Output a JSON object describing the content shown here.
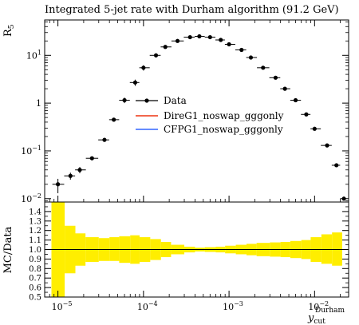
{
  "chart_data": [
    {
      "type": "scatter",
      "title": "Integrated 5-jet rate with Durham algorithm (91.2 GeV)",
      "ylabel": "R5",
      "ylabel_main": "R",
      "ylabel_sub": "5",
      "xlabel_main": "y",
      "xlabel_sub": "cut",
      "xlabel_sup": "Durham",
      "xscale": "log",
      "yscale": "log",
      "xlim": [
        7e-06,
        0.025
      ],
      "ylim": [
        0.0085,
        55
      ],
      "grid": false,
      "legend_position": "center",
      "x_ticks": [
        {
          "value": 1e-05,
          "base": "10",
          "exp": "−5"
        },
        {
          "value": 0.0001,
          "base": "10",
          "exp": "−4"
        },
        {
          "value": 0.001,
          "base": "10",
          "exp": "−3"
        },
        {
          "value": 0.01,
          "base": "10",
          "exp": "−2"
        }
      ],
      "y_ticks": [
        {
          "value": 0.01,
          "base": "10",
          "exp": "−2",
          "plain": ""
        },
        {
          "value": 0.1,
          "base": "10",
          "exp": "−1",
          "plain": ""
        },
        {
          "value": 1,
          "base": "",
          "exp": "",
          "plain": "1"
        },
        {
          "value": 10,
          "base": "10",
          "exp": "1",
          "plain": ""
        }
      ],
      "series": [
        {
          "name": "Data",
          "color": "#000000",
          "points": [
            {
              "x": 1e-05,
              "y": 0.02,
              "lo": 0.013,
              "hi": 0.026
            },
            {
              "x": 1.4e-05,
              "y": 0.03,
              "lo": 0.025,
              "hi": 0.035
            },
            {
              "x": 1.8e-05,
              "y": 0.04,
              "lo": 0.034,
              "hi": 0.046
            },
            {
              "x": 2.5e-05,
              "y": 0.07,
              "lo": 0.065,
              "hi": 0.075
            },
            {
              "x": 3.5e-05,
              "y": 0.17,
              "lo": 0.16,
              "hi": 0.18
            },
            {
              "x": 4.5e-05,
              "y": 0.45,
              "lo": 0.42,
              "hi": 0.48
            },
            {
              "x": 6e-05,
              "y": 1.15,
              "lo": 1.0,
              "hi": 1.3
            },
            {
              "x": 8e-05,
              "y": 2.7,
              "lo": 2.3,
              "hi": 3.1
            },
            {
              "x": 0.0001,
              "y": 5.5,
              "lo": 4.8,
              "hi": 6.2
            },
            {
              "x": 0.00014,
              "y": 10.0,
              "lo": 9.0,
              "hi": 11.0
            },
            {
              "x": 0.00018,
              "y": 15.0,
              "lo": 14.0,
              "hi": 16.0
            },
            {
              "x": 0.00025,
              "y": 20.0,
              "lo": 19.0,
              "hi": 21.0
            },
            {
              "x": 0.00035,
              "y": 24.0,
              "lo": 23.0,
              "hi": 25.0
            },
            {
              "x": 0.00045,
              "y": 25.0,
              "lo": 24.2,
              "hi": 25.8
            },
            {
              "x": 0.0006,
              "y": 24.0,
              "lo": 23.2,
              "hi": 24.8
            },
            {
              "x": 0.0008,
              "y": 21.0,
              "lo": 20.2,
              "hi": 21.8
            },
            {
              "x": 0.001,
              "y": 17.0,
              "lo": 16.3,
              "hi": 17.7
            },
            {
              "x": 0.0014,
              "y": 13.0,
              "lo": 12.4,
              "hi": 13.6
            },
            {
              "x": 0.0018,
              "y": 9.0,
              "lo": 8.6,
              "hi": 9.4
            },
            {
              "x": 0.0025,
              "y": 5.5,
              "lo": 5.2,
              "hi": 5.8
            },
            {
              "x": 0.0035,
              "y": 3.4,
              "lo": 3.2,
              "hi": 3.6
            },
            {
              "x": 0.0045,
              "y": 2.0,
              "lo": 1.9,
              "hi": 2.1
            },
            {
              "x": 0.006,
              "y": 1.15,
              "lo": 1.08,
              "hi": 1.22
            },
            {
              "x": 0.008,
              "y": 0.58,
              "lo": 0.54,
              "hi": 0.62
            },
            {
              "x": 0.01,
              "y": 0.29,
              "lo": 0.27,
              "hi": 0.31
            },
            {
              "x": 0.014,
              "y": 0.13,
              "lo": 0.12,
              "hi": 0.14
            },
            {
              "x": 0.018,
              "y": 0.05,
              "lo": 0.046,
              "hi": 0.054
            },
            {
              "x": 0.022,
              "y": 0.01,
              "lo": 0.0095,
              "hi": 0.0105
            }
          ]
        },
        {
          "name": "DireG1_noswap_gggonly",
          "color": "#ee3311",
          "points": []
        },
        {
          "name": "CFPG1_noswap_gggonly",
          "color": "#3366ff",
          "points": []
        }
      ]
    },
    {
      "type": "area",
      "ylabel": "MC/Data",
      "xscale": "log",
      "xlim": [
        7e-06,
        0.025
      ],
      "ylim": [
        0.5,
        1.5
      ],
      "reference_line": 1.0,
      "y_ticks": [
        "0.5",
        "0.6",
        "0.7",
        "0.8",
        "0.9",
        "1.0",
        "1.1",
        "1.2",
        "1.3",
        "1.4"
      ],
      "band_color": "#ffee00",
      "band": [
        {
          "x0": 8.4e-06,
          "x1": 1.2e-05,
          "lo": 0.5,
          "hi": 1.5
        },
        {
          "x0": 1.2e-05,
          "x1": 1.6e-05,
          "lo": 0.75,
          "hi": 1.25
        },
        {
          "x0": 1.6e-05,
          "x1": 2.1e-05,
          "lo": 0.83,
          "hi": 1.17
        },
        {
          "x0": 2.1e-05,
          "x1": 3e-05,
          "lo": 0.87,
          "hi": 1.13
        },
        {
          "x0": 3e-05,
          "x1": 4e-05,
          "lo": 0.88,
          "hi": 1.12
        },
        {
          "x0": 4e-05,
          "x1": 5.2e-05,
          "lo": 0.88,
          "hi": 1.13
        },
        {
          "x0": 5.2e-05,
          "x1": 7e-05,
          "lo": 0.86,
          "hi": 1.14
        },
        {
          "x0": 7e-05,
          "x1": 9e-05,
          "lo": 0.85,
          "hi": 1.15
        },
        {
          "x0": 9e-05,
          "x1": 0.00012,
          "lo": 0.87,
          "hi": 1.13
        },
        {
          "x0": 0.00012,
          "x1": 0.00016,
          "lo": 0.89,
          "hi": 1.11
        },
        {
          "x0": 0.00016,
          "x1": 0.00021,
          "lo": 0.92,
          "hi": 1.08
        },
        {
          "x0": 0.00021,
          "x1": 0.0003,
          "lo": 0.95,
          "hi": 1.05
        },
        {
          "x0": 0.0003,
          "x1": 0.0004,
          "lo": 0.97,
          "hi": 1.03
        },
        {
          "x0": 0.0004,
          "x1": 0.00052,
          "lo": 0.98,
          "hi": 1.02
        },
        {
          "x0": 0.00052,
          "x1": 0.0007,
          "lo": 0.975,
          "hi": 1.025
        },
        {
          "x0": 0.0007,
          "x1": 0.0009,
          "lo": 0.97,
          "hi": 1.03
        },
        {
          "x0": 0.0009,
          "x1": 0.0012,
          "lo": 0.96,
          "hi": 1.04
        },
        {
          "x0": 0.0012,
          "x1": 0.0016,
          "lo": 0.95,
          "hi": 1.05
        },
        {
          "x0": 0.0016,
          "x1": 0.0021,
          "lo": 0.94,
          "hi": 1.06
        },
        {
          "x0": 0.0021,
          "x1": 0.003,
          "lo": 0.93,
          "hi": 1.07
        },
        {
          "x0": 0.003,
          "x1": 0.004,
          "lo": 0.925,
          "hi": 1.075
        },
        {
          "x0": 0.004,
          "x1": 0.0052,
          "lo": 0.92,
          "hi": 1.08
        },
        {
          "x0": 0.0052,
          "x1": 0.007,
          "lo": 0.91,
          "hi": 1.09
        },
        {
          "x0": 0.007,
          "x1": 0.009,
          "lo": 0.9,
          "hi": 1.1
        },
        {
          "x0": 0.009,
          "x1": 0.012,
          "lo": 0.87,
          "hi": 1.13
        },
        {
          "x0": 0.012,
          "x1": 0.016,
          "lo": 0.85,
          "hi": 1.16
        },
        {
          "x0": 0.016,
          "x1": 0.021,
          "lo": 0.83,
          "hi": 1.18
        }
      ]
    }
  ]
}
